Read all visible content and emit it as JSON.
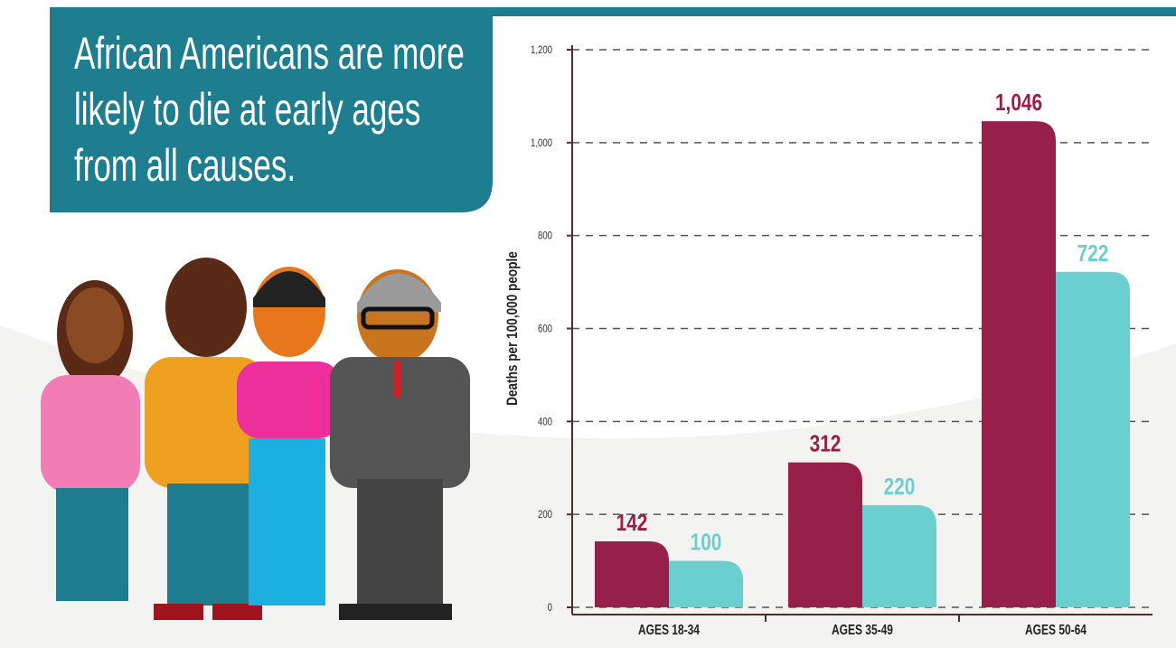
{
  "chart_data": {
    "type": "bar",
    "title": "African Americans are more likely to die at early ages from all causes.",
    "y_label": "Deaths per 100,000 people",
    "categories": [
      "AGES 18-34",
      "AGES 35-49",
      "AGES 50-64"
    ],
    "series": [
      {
        "color": "#97204a",
        "values": [
          142,
          312,
          1046
        ],
        "value_labels": [
          "142",
          "312",
          "1,046"
        ]
      },
      {
        "color": "#6ccfcf",
        "values": [
          100,
          220,
          722
        ]
      }
    ],
    "ylim": [
      0,
      1200
    ],
    "yticks": [
      0,
      200,
      400,
      600,
      800,
      {
        "value": 1000,
        "label": "1,000"
      },
      {
        "value": 1200,
        "label": "1,200"
      }
    ],
    "grid": true
  }
}
